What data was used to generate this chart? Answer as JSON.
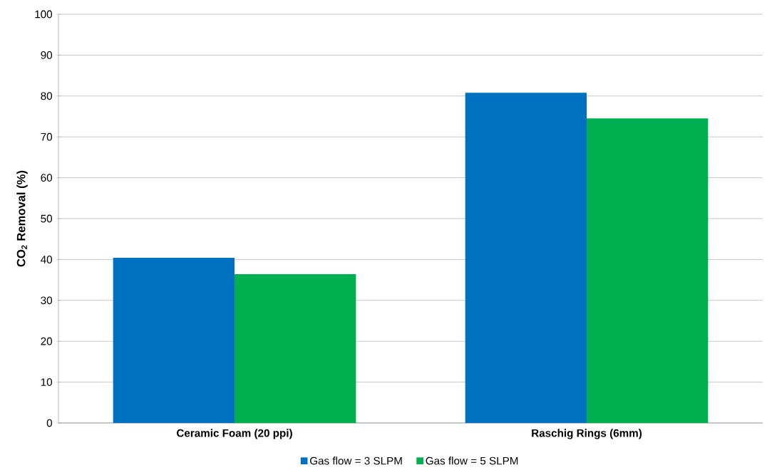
{
  "chart_data": {
    "type": "bar",
    "ylabel": "CO$_{2}$ Removal (%)",
    "categories": [
      "Ceramic Foam (20 ppi)",
      "Raschig Rings (6mm)"
    ],
    "series": [
      {
        "name": "Gas flow = 3 SLPM",
        "color": "#0070c0",
        "values": [
          40.4,
          80.8
        ]
      },
      {
        "name": "Gas flow = 5 SLPM",
        "color": "#00b050",
        "values": [
          36.4,
          74.5
        ]
      }
    ],
    "ylim": [
      0,
      100
    ],
    "yticks": [
      0,
      10,
      20,
      30,
      40,
      50,
      60,
      70,
      80,
      90,
      100
    ],
    "grid": "y",
    "legend": "bottom"
  }
}
